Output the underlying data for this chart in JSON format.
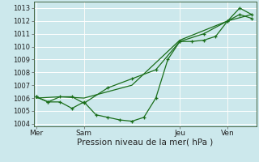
{
  "title": "Pression niveau de la mer( hPa )",
  "bg_color": "#cce8ec",
  "grid_color": "#ffffff",
  "line_color": "#1a6e1a",
  "ylim": [
    1003.8,
    1013.5
  ],
  "yticks": [
    1004,
    1005,
    1006,
    1007,
    1008,
    1009,
    1010,
    1011,
    1012,
    1013
  ],
  "xlabel_fontsize": 7.5,
  "ytick_fontsize": 6,
  "xtick_fontsize": 6.5,
  "xtick_labels": [
    "Mer",
    "Sam",
    "Jeu",
    "Ven"
  ],
  "xtick_positions": [
    0.0,
    1.0,
    3.0,
    4.0
  ],
  "vline_positions": [
    1.0,
    3.0,
    4.0
  ],
  "series1_x": [
    0,
    0.25,
    0.5,
    0.75,
    1.0,
    1.25,
    1.5,
    1.75,
    2.0,
    2.25,
    2.5,
    2.75,
    3.0,
    3.25,
    3.5,
    3.75,
    4.0,
    4.25,
    4.5
  ],
  "series1_y": [
    1006.1,
    1005.7,
    1005.7,
    1005.2,
    1005.7,
    1004.7,
    1004.5,
    1004.3,
    1004.2,
    1004.5,
    1006.0,
    1009.0,
    1010.4,
    1010.4,
    1010.5,
    1010.8,
    1012.0,
    1012.5,
    1012.2
  ],
  "series2_x": [
    0,
    0.25,
    0.5,
    0.75,
    1.0,
    1.5,
    2.0,
    2.5,
    3.0,
    3.5,
    4.0,
    4.25,
    4.5
  ],
  "series2_y": [
    1006.1,
    1005.7,
    1006.1,
    1006.1,
    1005.6,
    1006.8,
    1007.5,
    1008.2,
    1010.4,
    1011.0,
    1012.0,
    1013.0,
    1012.5
  ],
  "series3_x": [
    0,
    0.5,
    1.0,
    2.0,
    3.0,
    4.0,
    4.5
  ],
  "series3_y": [
    1006.0,
    1006.1,
    1006.0,
    1007.0,
    1010.5,
    1012.0,
    1012.5
  ],
  "xlim": [
    -0.05,
    4.6
  ]
}
